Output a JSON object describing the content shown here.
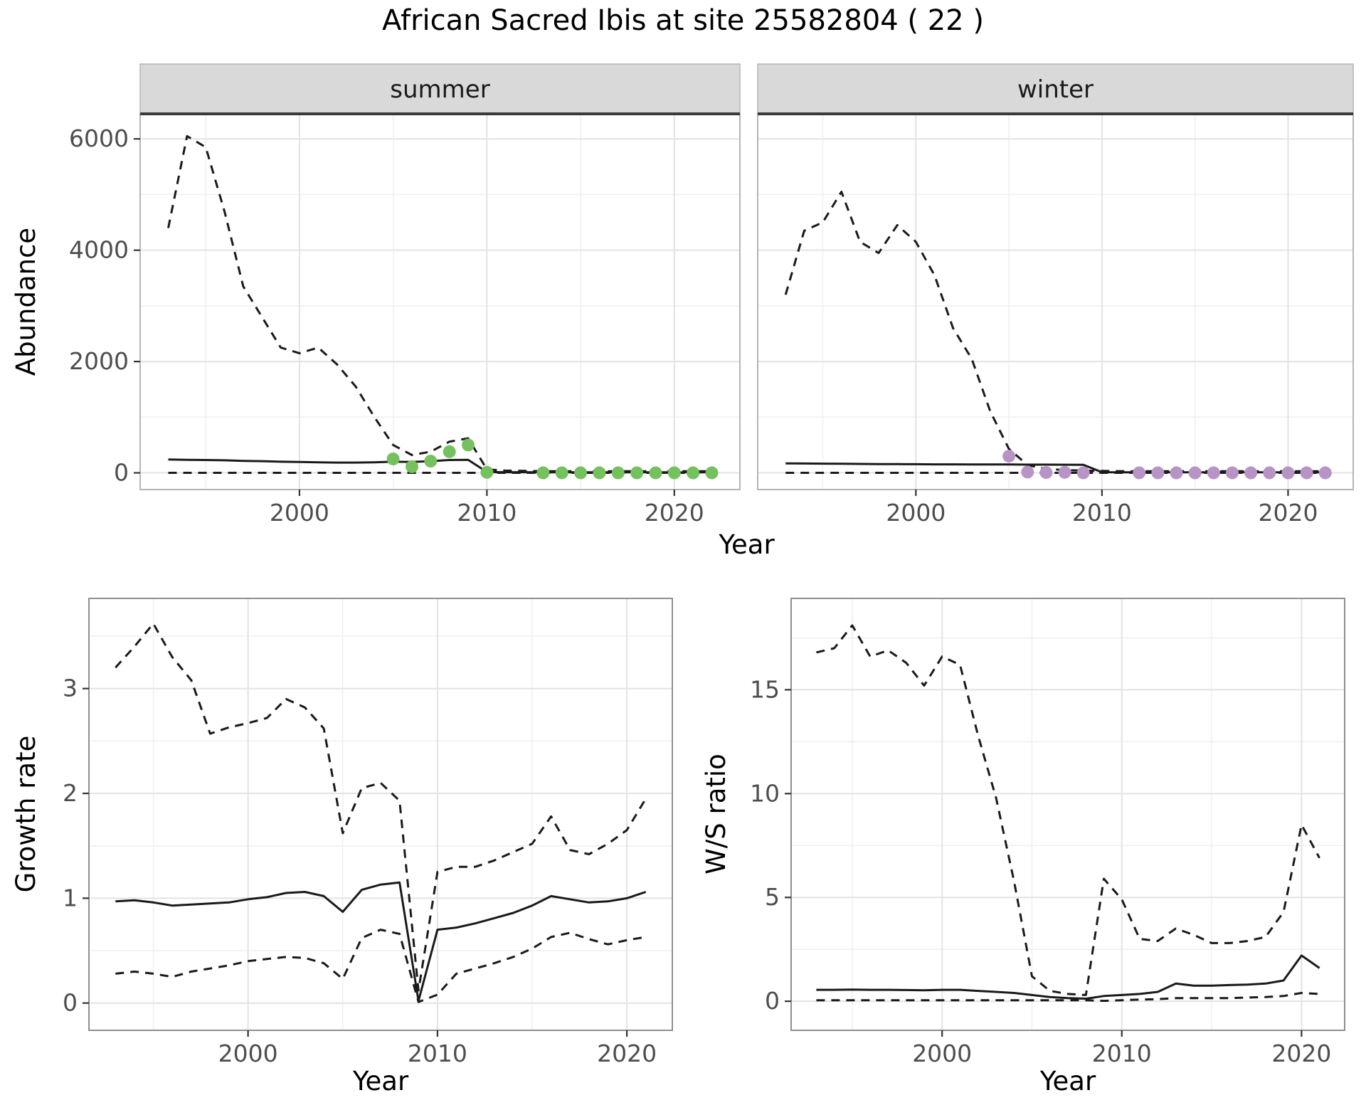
{
  "title": "African Sacred Ibis at site 25582804 ( 22 )",
  "shared": {
    "xlabel_top": "Year",
    "ylabel_top": "Abundance"
  },
  "colors": {
    "line": "#1a1a1a",
    "strip_bg": "#d9d9d9",
    "strip_border": "#b5b5b5",
    "strip_underline": "#3a3a3a",
    "grid_major": "#e3e3e3",
    "grid_minor": "#efefef",
    "tick_text": "#4d4d4d",
    "tick_mark": "#333333",
    "summer_points": "#74c15e",
    "winter_points": "#b894c6"
  },
  "chart_data": [
    {
      "id": "abundance-summer",
      "type": "line",
      "facet": "summer",
      "xlabel": "Year",
      "ylabel": "Abundance",
      "xlim": [
        1991.5,
        2023.5
      ],
      "ylim": [
        -300,
        6450
      ],
      "xticks": [
        2000,
        2010,
        2020
      ],
      "yticks": [
        0,
        2000,
        4000,
        6000
      ],
      "x": [
        1993,
        1994,
        1995,
        1996,
        1997,
        1998,
        1999,
        2000,
        2001,
        2002,
        2003,
        2004,
        2005,
        2006,
        2007,
        2008,
        2009,
        2010,
        2011,
        2012,
        2013,
        2014,
        2015,
        2016,
        2017,
        2018,
        2019,
        2020,
        2021,
        2022
      ],
      "series": [
        {
          "name": "upper_ci",
          "style": "dashed",
          "values": [
            4400,
            6050,
            5850,
            4700,
            3350,
            2800,
            2250,
            2150,
            2250,
            1950,
            1550,
            1000,
            500,
            320,
            380,
            560,
            620,
            60,
            40,
            35,
            30,
            30,
            30,
            30,
            30,
            30,
            30,
            30,
            30,
            30
          ]
        },
        {
          "name": "median",
          "style": "solid",
          "values": [
            240,
            235,
            230,
            225,
            215,
            210,
            200,
            195,
            190,
            185,
            185,
            190,
            200,
            195,
            210,
            230,
            235,
            15,
            12,
            12,
            10,
            10,
            10,
            10,
            10,
            10,
            10,
            10,
            10,
            10
          ]
        },
        {
          "name": "lower_ci",
          "style": "dashed",
          "values": [
            0,
            0,
            0,
            0,
            0,
            0,
            0,
            0,
            0,
            0,
            0,
            0,
            0,
            0,
            0,
            0,
            0,
            0,
            0,
            0,
            0,
            0,
            0,
            0,
            0,
            0,
            0,
            0,
            0,
            0
          ]
        }
      ],
      "points": {
        "name": "observed-summer",
        "color": "#74c15e",
        "x": [
          2005,
          2006,
          2007,
          2008,
          2009,
          2010,
          2013,
          2014,
          2015,
          2016,
          2017,
          2018,
          2019,
          2020,
          2021,
          2022
        ],
        "y": [
          250,
          110,
          210,
          380,
          500,
          10,
          0,
          0,
          0,
          0,
          0,
          0,
          0,
          0,
          0,
          0
        ]
      }
    },
    {
      "id": "abundance-winter",
      "type": "line",
      "facet": "winter",
      "xlabel": "Year",
      "ylabel": "Abundance",
      "xlim": [
        1991.5,
        2023.5
      ],
      "ylim": [
        -300,
        6450
      ],
      "xticks": [
        2000,
        2010,
        2020
      ],
      "yticks": [
        0,
        2000,
        4000,
        6000
      ],
      "x": [
        1993,
        1994,
        1995,
        1996,
        1997,
        1998,
        1999,
        2000,
        2001,
        2002,
        2003,
        2004,
        2005,
        2006,
        2007,
        2008,
        2009,
        2010,
        2011,
        2012,
        2013,
        2014,
        2015,
        2016,
        2017,
        2018,
        2019,
        2020,
        2021,
        2022
      ],
      "series": [
        {
          "name": "upper_ci",
          "style": "dashed",
          "values": [
            3200,
            4350,
            4500,
            5050,
            4150,
            3950,
            4450,
            4150,
            3550,
            2600,
            2050,
            1100,
            430,
            140,
            70,
            50,
            40,
            35,
            30,
            30,
            30,
            30,
            30,
            30,
            30,
            30,
            30,
            30,
            30,
            30
          ]
        },
        {
          "name": "median",
          "style": "solid",
          "values": [
            170,
            168,
            165,
            163,
            160,
            158,
            157,
            155,
            153,
            152,
            150,
            150,
            150,
            148,
            147,
            146,
            145,
            12,
            10,
            10,
            10,
            10,
            10,
            10,
            10,
            10,
            10,
            10,
            10,
            10
          ]
        },
        {
          "name": "lower_ci",
          "style": "dashed",
          "values": [
            0,
            0,
            0,
            0,
            0,
            0,
            0,
            0,
            0,
            0,
            0,
            0,
            0,
            0,
            0,
            0,
            0,
            0,
            0,
            0,
            0,
            0,
            0,
            0,
            0,
            0,
            0,
            0,
            0,
            0
          ]
        }
      ],
      "points": {
        "name": "observed-winter",
        "color": "#b894c6",
        "x": [
          2005,
          2006,
          2007,
          2008,
          2009,
          2012,
          2013,
          2014,
          2015,
          2016,
          2017,
          2018,
          2019,
          2020,
          2021,
          2022
        ],
        "y": [
          300,
          15,
          5,
          10,
          0,
          0,
          0,
          0,
          0,
          0,
          0,
          0,
          0,
          0,
          0,
          0
        ]
      }
    },
    {
      "id": "growth-rate",
      "type": "line",
      "facet": null,
      "xlabel": "Year",
      "ylabel": "Growth rate",
      "xlim": [
        1991.6,
        2022.4
      ],
      "ylim": [
        -0.26,
        3.86
      ],
      "xticks": [
        2000,
        2010,
        2020
      ],
      "yticks": [
        0,
        1,
        2,
        3
      ],
      "x": [
        1993,
        1994,
        1995,
        1996,
        1997,
        1998,
        1999,
        2000,
        2001,
        2002,
        2003,
        2004,
        2005,
        2006,
        2007,
        2008,
        2009,
        2010,
        2011,
        2012,
        2013,
        2014,
        2015,
        2016,
        2017,
        2018,
        2019,
        2020,
        2021
      ],
      "series": [
        {
          "name": "upper_ci",
          "style": "dashed",
          "values": [
            3.2,
            3.4,
            3.62,
            3.3,
            3.08,
            2.57,
            2.63,
            2.67,
            2.72,
            2.9,
            2.82,
            2.62,
            1.62,
            2.05,
            2.1,
            1.93,
            0.12,
            1.25,
            1.3,
            1.3,
            1.36,
            1.44,
            1.52,
            1.78,
            1.46,
            1.42,
            1.52,
            1.65,
            1.95
          ]
        },
        {
          "name": "median",
          "style": "solid",
          "values": [
            0.97,
            0.98,
            0.96,
            0.93,
            0.94,
            0.95,
            0.96,
            0.99,
            1.01,
            1.05,
            1.06,
            1.02,
            0.87,
            1.08,
            1.13,
            1.15,
            0.02,
            0.7,
            0.72,
            0.76,
            0.81,
            0.86,
            0.93,
            1.02,
            0.99,
            0.96,
            0.97,
            1.0,
            1.06
          ]
        },
        {
          "name": "lower_ci",
          "style": "dashed",
          "values": [
            0.28,
            0.3,
            0.28,
            0.25,
            0.3,
            0.33,
            0.36,
            0.4,
            0.42,
            0.44,
            0.43,
            0.38,
            0.23,
            0.62,
            0.7,
            0.66,
            0.01,
            0.08,
            0.28,
            0.33,
            0.38,
            0.44,
            0.52,
            0.63,
            0.67,
            0.61,
            0.56,
            0.6,
            0.63
          ]
        }
      ],
      "points": null
    },
    {
      "id": "ws-ratio",
      "type": "line",
      "facet": null,
      "xlabel": "Year",
      "ylabel": "W/S ratio",
      "xlim": [
        1991.6,
        2022.4
      ],
      "ylim": [
        -1.4,
        19.4
      ],
      "xticks": [
        2000,
        2010,
        2020
      ],
      "yticks": [
        0,
        5,
        10,
        15
      ],
      "x": [
        1993,
        1994,
        1995,
        1996,
        1997,
        1998,
        1999,
        2000,
        2001,
        2002,
        2003,
        2004,
        2005,
        2006,
        2007,
        2008,
        2009,
        2010,
        2011,
        2012,
        2013,
        2014,
        2015,
        2016,
        2017,
        2018,
        2019,
        2020,
        2021
      ],
      "series": [
        {
          "name": "upper_ci",
          "style": "dashed",
          "values": [
            16.8,
            17.0,
            18.1,
            16.6,
            16.9,
            16.3,
            15.2,
            16.6,
            16.2,
            12.8,
            9.8,
            5.8,
            1.2,
            0.5,
            0.35,
            0.3,
            5.9,
            4.9,
            3.0,
            2.9,
            3.5,
            3.2,
            2.8,
            2.8,
            2.9,
            3.1,
            4.3,
            8.5,
            6.9
          ]
        },
        {
          "name": "median",
          "style": "solid",
          "values": [
            0.55,
            0.55,
            0.56,
            0.55,
            0.55,
            0.54,
            0.53,
            0.55,
            0.55,
            0.5,
            0.45,
            0.4,
            0.3,
            0.2,
            0.15,
            0.12,
            0.25,
            0.3,
            0.35,
            0.45,
            0.85,
            0.75,
            0.75,
            0.78,
            0.8,
            0.85,
            1.0,
            2.2,
            1.6
          ]
        },
        {
          "name": "lower_ci",
          "style": "dashed",
          "values": [
            0.05,
            0.05,
            0.05,
            0.05,
            0.05,
            0.05,
            0.05,
            0.05,
            0.05,
            0.05,
            0.05,
            0.05,
            0.05,
            0.05,
            0.05,
            0.05,
            0.02,
            0.05,
            0.08,
            0.1,
            0.15,
            0.15,
            0.15,
            0.15,
            0.18,
            0.2,
            0.25,
            0.4,
            0.35
          ]
        }
      ],
      "points": null
    }
  ]
}
